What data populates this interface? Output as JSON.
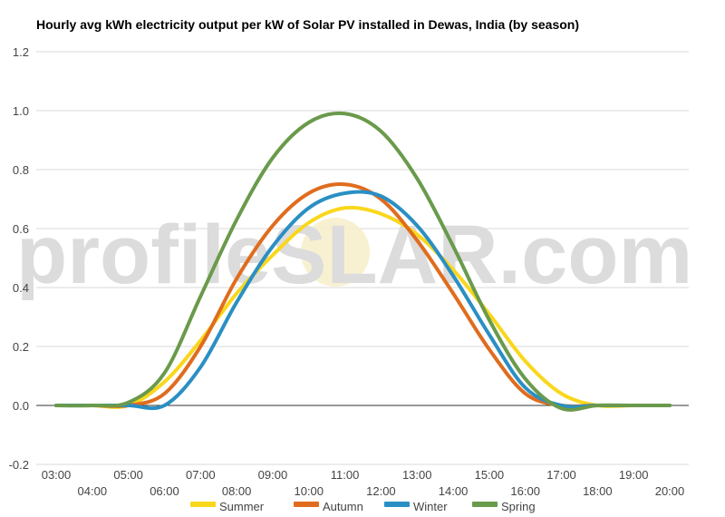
{
  "chart_data": {
    "type": "line",
    "title": "Hourly avg kWh electricity output per kW of Solar PV installed in Dewas, India (by season)",
    "xlabel": "",
    "ylabel": "",
    "ylim": [
      -0.2,
      1.2
    ],
    "yticks": [
      "-0.2",
      "0.0",
      "0.2",
      "0.4",
      "0.6",
      "0.8",
      "1.0",
      "1.2"
    ],
    "categories": [
      "03:00",
      "04:00",
      "05:00",
      "06:00",
      "07:00",
      "08:00",
      "09:00",
      "10:00",
      "11:00",
      "12:00",
      "13:00",
      "14:00",
      "15:00",
      "16:00",
      "17:00",
      "18:00",
      "19:00",
      "20:00"
    ],
    "grid": true,
    "legend_position": "bottom",
    "series": [
      {
        "name": "Summer",
        "color": "#f9d71c",
        "values": [
          0.0,
          0.0,
          0.0,
          0.08,
          0.22,
          0.38,
          0.51,
          0.62,
          0.67,
          0.65,
          0.58,
          0.46,
          0.31,
          0.15,
          0.04,
          0.0,
          0.0,
          0.0
        ]
      },
      {
        "name": "Autumn",
        "color": "#e06c1e",
        "values": [
          0.0,
          0.0,
          0.0,
          0.04,
          0.2,
          0.43,
          0.61,
          0.72,
          0.75,
          0.7,
          0.56,
          0.38,
          0.19,
          0.04,
          0.0,
          0.0,
          0.0,
          0.0
        ]
      },
      {
        "name": "Winter",
        "color": "#2a8fc4",
        "values": [
          0.0,
          0.0,
          0.0,
          0.0,
          0.13,
          0.35,
          0.54,
          0.67,
          0.72,
          0.71,
          0.61,
          0.44,
          0.24,
          0.06,
          0.0,
          0.0,
          0.0,
          0.0
        ]
      },
      {
        "name": "Spring",
        "color": "#6a9a4b",
        "values": [
          0.0,
          0.0,
          0.01,
          0.11,
          0.37,
          0.63,
          0.84,
          0.96,
          0.99,
          0.93,
          0.77,
          0.54,
          0.29,
          0.09,
          -0.01,
          0.0,
          0.0,
          0.0
        ]
      }
    ]
  },
  "watermark": {
    "left": "profile",
    "sun": "S",
    "right": "LAR.com"
  }
}
